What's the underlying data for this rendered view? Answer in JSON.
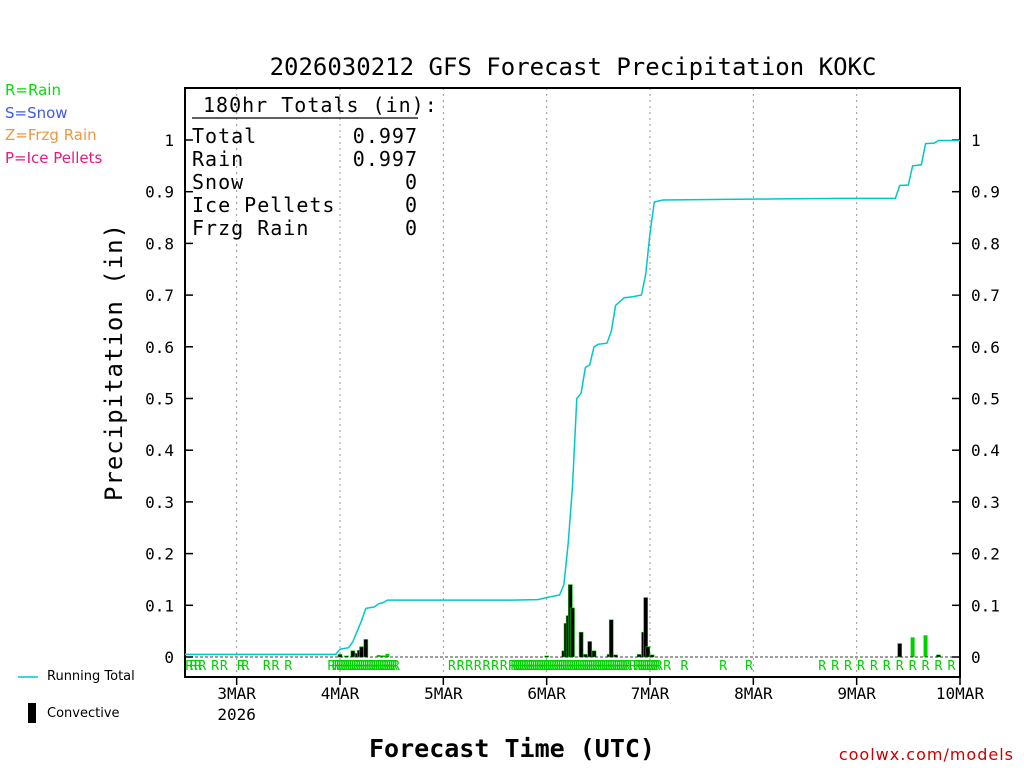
{
  "chart_data": {
    "type": "bar",
    "title": "2026030212 GFS Forecast Precipitation KOKC",
    "xlabel": "Forecast Time (UTC)",
    "ylabel": "Precipitation (in)",
    "ylim": [
      0,
      1.1
    ],
    "y_ticks": [
      0,
      0.1,
      0.2,
      0.3,
      0.4,
      0.5,
      0.6,
      0.7,
      0.8,
      0.9,
      1
    ],
    "y_tick_labels": [
      "0",
      "0.1",
      "0.2",
      "0.3",
      "0.4",
      "0.5",
      "0.6",
      "0.7",
      "0.8",
      "0.9",
      "1"
    ],
    "xlim_hours": [
      12,
      192
    ],
    "x_ticks": [
      {
        "hour": 24,
        "label": "3MAR",
        "sublabel": "2026"
      },
      {
        "hour": 48,
        "label": "4MAR"
      },
      {
        "hour": 72,
        "label": "5MAR"
      },
      {
        "hour": 96,
        "label": "6MAR"
      },
      {
        "hour": 120,
        "label": "7MAR"
      },
      {
        "hour": 144,
        "label": "8MAR"
      },
      {
        "hour": 168,
        "label": "9MAR"
      },
      {
        "hour": 192,
        "label": "10MAR"
      }
    ],
    "totals_box": {
      "heading": "180hr Totals (in):",
      "rows": [
        {
          "label": "Total",
          "value": "0.997"
        },
        {
          "label": "Rain",
          "value": "0.997"
        },
        {
          "label": "Snow",
          "value": "0"
        },
        {
          "label": "Ice Pellets",
          "value": "0"
        },
        {
          "label": "Frzg Rain",
          "value": "0"
        }
      ]
    },
    "series": [
      {
        "name": "Running Total",
        "type": "line",
        "color": "#00c8c8",
        "points": [
          [
            12,
            0.005
          ],
          [
            47,
            0.005
          ],
          [
            48,
            0.015
          ],
          [
            50,
            0.018
          ],
          [
            51,
            0.03
          ],
          [
            52,
            0.05
          ],
          [
            53,
            0.07
          ],
          [
            54,
            0.094
          ],
          [
            56,
            0.097
          ],
          [
            57,
            0.103
          ],
          [
            58,
            0.105
          ],
          [
            59,
            0.11
          ],
          [
            64,
            0.11
          ],
          [
            88,
            0.11
          ],
          [
            94,
            0.111
          ],
          [
            96,
            0.115
          ],
          [
            99,
            0.12
          ],
          [
            100,
            0.14
          ],
          [
            101,
            0.22
          ],
          [
            102,
            0.33
          ],
          [
            103,
            0.5
          ],
          [
            104,
            0.51
          ],
          [
            105,
            0.56
          ],
          [
            106,
            0.565
          ],
          [
            107,
            0.6
          ],
          [
            108,
            0.605
          ],
          [
            110,
            0.607
          ],
          [
            111,
            0.63
          ],
          [
            112,
            0.68
          ],
          [
            114,
            0.695
          ],
          [
            116,
            0.697
          ],
          [
            118,
            0.7
          ],
          [
            119,
            0.74
          ],
          [
            120,
            0.82
          ],
          [
            121,
            0.88
          ],
          [
            123,
            0.884
          ],
          [
            150,
            0.886
          ],
          [
            165,
            0.887
          ],
          [
            175,
            0.887
          ],
          [
            177,
            0.887
          ],
          [
            178,
            0.912
          ],
          [
            180,
            0.913
          ],
          [
            181,
            0.95
          ],
          [
            183,
            0.952
          ],
          [
            184,
            0.993
          ],
          [
            186,
            0.994
          ],
          [
            187,
            0.999
          ],
          [
            192,
            0.999
          ]
        ]
      },
      {
        "name": "Precipitation",
        "type": "bar",
        "bars": [
          {
            "hour": 48,
            "value": 0.005,
            "kind": "convective"
          },
          {
            "hour": 49.5,
            "value": 0.002,
            "kind": "convective"
          },
          {
            "hour": 51,
            "value": 0.012,
            "kind": "convective"
          },
          {
            "hour": 52,
            "value": 0.007,
            "kind": "convective"
          },
          {
            "hour": 52.5,
            "value": 0.013,
            "kind": "convective"
          },
          {
            "hour": 53,
            "value": 0.02,
            "kind": "convective"
          },
          {
            "hour": 54,
            "value": 0.034,
            "kind": "convective"
          },
          {
            "hour": 57,
            "value": 0.004,
            "kind": "rain"
          },
          {
            "hour": 58,
            "value": 0.003,
            "kind": "rain"
          },
          {
            "hour": 59,
            "value": 0.006,
            "kind": "rain"
          },
          {
            "hour": 96,
            "value": 0.002,
            "kind": "convective"
          },
          {
            "hour": 100,
            "value": 0.012,
            "kind": "convective"
          },
          {
            "hour": 100.5,
            "value": 0.065,
            "kind": "convective"
          },
          {
            "hour": 101,
            "value": 0.08,
            "kind": "convective"
          },
          {
            "hour": 101.5,
            "value": 0.14,
            "kind": "convective"
          },
          {
            "hour": 102,
            "value": 0.095,
            "kind": "convective"
          },
          {
            "hour": 104,
            "value": 0.048,
            "kind": "convective"
          },
          {
            "hour": 105,
            "value": 0.005,
            "kind": "convective"
          },
          {
            "hour": 106,
            "value": 0.03,
            "kind": "convective"
          },
          {
            "hour": 107,
            "value": 0.012,
            "kind": "convective"
          },
          {
            "hour": 110.5,
            "value": 0.005,
            "kind": "convective"
          },
          {
            "hour": 111,
            "value": 0.072,
            "kind": "convective"
          },
          {
            "hour": 112,
            "value": 0.004,
            "kind": "convective"
          },
          {
            "hour": 117.5,
            "value": 0.005,
            "kind": "convective"
          },
          {
            "hour": 118.5,
            "value": 0.048,
            "kind": "convective"
          },
          {
            "hour": 119,
            "value": 0.115,
            "kind": "convective"
          },
          {
            "hour": 119.5,
            "value": 0.02,
            "kind": "convective"
          },
          {
            "hour": 120.5,
            "value": 0.004,
            "kind": "convective"
          },
          {
            "hour": 178,
            "value": 0.026,
            "kind": "convective"
          },
          {
            "hour": 181,
            "value": 0.038,
            "kind": "rain"
          },
          {
            "hour": 184,
            "value": 0.042,
            "kind": "rain"
          },
          {
            "hour": 187,
            "value": 0.004,
            "kind": "convective"
          }
        ]
      }
    ],
    "ptype_row": {
      "marker": "R",
      "hours": [
        13,
        14,
        15,
        16,
        19,
        21,
        25,
        26,
        31,
        33,
        36,
        46,
        47,
        47.5,
        48,
        48.5,
        49,
        49.5,
        50,
        50.5,
        51,
        51.5,
        52,
        52.5,
        53,
        53.5,
        54,
        54.5,
        55,
        55.5,
        56,
        56.5,
        57,
        57.5,
        58,
        58.5,
        59,
        59.5,
        60,
        60.5,
        61,
        74,
        76,
        78,
        80,
        82,
        84,
        86,
        88,
        88.5,
        89,
        89.5,
        90,
        90.5,
        91,
        91.5,
        92,
        92.5,
        93,
        93.5,
        94,
        94.5,
        95,
        95.5,
        96,
        96.5,
        97,
        97.5,
        98,
        98.5,
        99,
        99.5,
        100,
        100.5,
        101,
        101.5,
        102,
        102.5,
        103,
        103.5,
        104,
        104.5,
        105,
        105.5,
        106,
        106.5,
        107,
        107.5,
        108,
        108.5,
        109,
        109.5,
        110,
        110.5,
        111,
        111.5,
        112,
        112.5,
        113,
        113.5,
        114,
        114.5,
        115,
        116,
        117,
        117.5,
        118,
        118.5,
        119,
        119.5,
        120,
        120.5,
        121,
        121.5,
        122,
        124,
        128,
        137,
        143,
        160,
        163,
        166,
        169,
        172,
        175,
        178,
        181,
        184,
        187,
        190
      ]
    },
    "legend": {
      "type_keys": [
        {
          "text": "R=Rain",
          "color": "#00e000"
        },
        {
          "text": "S=Snow",
          "color": "#3c5ae6"
        },
        {
          "text": "Z=Frzg Rain",
          "color": "#f0963c"
        },
        {
          "text": "P=Ice Pellets",
          "color": "#e6197d"
        }
      ],
      "line_label": "Running Total",
      "bar_label": "Convective"
    },
    "colors": {
      "rain": "#00d000",
      "convective": "#000000",
      "running_total": "#00c8c8"
    }
  },
  "credit": "coolwx.com/models"
}
